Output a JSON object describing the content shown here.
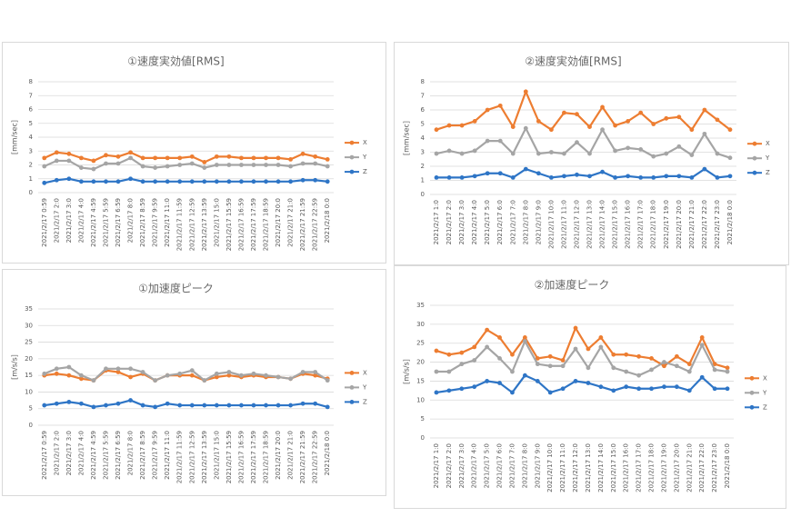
{
  "chart_data": [
    {
      "type": "line",
      "title": "①速度実効値[RMS]",
      "y_label": "[mm/sec]",
      "categories": [
        "2021/2/17 0:59",
        "2021/2/17 2:0",
        "2021/2/17 3:0",
        "2021/2/17 4:0",
        "2021/2/17 4:59",
        "2021/2/17 5:59",
        "2021/2/17 6:59",
        "2021/2/17 8:0",
        "2021/2/17 8:59",
        "2021/2/17 9:59",
        "2021/2/17 11:0",
        "2021/2/17 11:59",
        "2021/2/17 12:59",
        "2021/2/17 13:59",
        "2021/2/17 15:0",
        "2021/2/17 15:59",
        "2021/2/17 16:59",
        "2021/2/17 17:59",
        "2021/2/17 18:59",
        "2021/2/17 20:0",
        "2021/2/17 21:0",
        "2021/2/17 21:59",
        "2021/2/17 22:59",
        "2021/2/18 0:0"
      ],
      "series": [
        {
          "name": "X",
          "color": "#ed7d31",
          "values": [
            2.5,
            2.9,
            2.8,
            2.5,
            2.3,
            2.7,
            2.6,
            2.9,
            2.5,
            2.5,
            2.5,
            2.5,
            2.6,
            2.2,
            2.6,
            2.6,
            2.5,
            2.5,
            2.5,
            2.5,
            2.4,
            2.8,
            2.6,
            2.4
          ]
        },
        {
          "name": "Y",
          "color": "#a5a5a5",
          "values": [
            1.9,
            2.3,
            2.3,
            1.8,
            1.7,
            2.1,
            2.1,
            2.5,
            1.9,
            1.8,
            1.9,
            2.0,
            2.1,
            1.8,
            2.0,
            2.0,
            2.0,
            2.0,
            2.0,
            2.0,
            1.9,
            2.1,
            2.1,
            1.9
          ]
        },
        {
          "name": "Z",
          "color": "#2e75c6",
          "values": [
            0.7,
            0.9,
            1.0,
            0.8,
            0.8,
            0.8,
            0.8,
            1.0,
            0.8,
            0.8,
            0.8,
            0.8,
            0.8,
            0.8,
            0.8,
            0.8,
            0.8,
            0.8,
            0.8,
            0.8,
            0.8,
            0.9,
            0.9,
            0.8
          ]
        }
      ],
      "ylim": [
        0,
        8
      ],
      "yticks": [
        0,
        1,
        2,
        3,
        4,
        5,
        6,
        7,
        8
      ],
      "grid": true,
      "legend": "right"
    },
    {
      "type": "line",
      "title": "②速度実効値[RMS]",
      "y_label": "[mm/sec]",
      "categories": [
        "2021/2/17 1:0",
        "2021/2/17 2:0",
        "2021/2/17 3:0",
        "2021/2/17 4:0",
        "2021/2/17 5:0",
        "2021/2/17 6:0",
        "2021/2/17 7:0",
        "2021/2/17 8:0",
        "2021/2/17 9:0",
        "2021/2/17 10:0",
        "2021/2/17 11:0",
        "2021/2/17 12:0",
        "2021/2/17 13:0",
        "2021/2/17 14:0",
        "2021/2/17 15:0",
        "2021/2/17 16:0",
        "2021/2/17 17:0",
        "2021/2/17 18:0",
        "2021/2/17 19:0",
        "2021/2/17 20:0",
        "2021/2/17 21:0",
        "2021/2/17 22:0",
        "2021/2/17 23:0",
        "2021/2/18 0:0"
      ],
      "series": [
        {
          "name": "X",
          "color": "#ed7d31",
          "values": [
            4.6,
            4.9,
            4.9,
            5.2,
            6.0,
            6.3,
            4.8,
            7.3,
            5.2,
            4.6,
            5.8,
            5.7,
            4.8,
            6.2,
            4.9,
            5.2,
            5.8,
            5.0,
            5.4,
            5.5,
            4.6,
            6.0,
            5.3,
            4.6
          ]
        },
        {
          "name": "Y",
          "color": "#a5a5a5",
          "values": [
            2.9,
            3.1,
            2.9,
            3.1,
            3.8,
            3.8,
            2.9,
            4.7,
            2.9,
            3.0,
            2.9,
            3.7,
            2.9,
            4.6,
            3.1,
            3.3,
            3.2,
            2.7,
            2.9,
            3.4,
            2.8,
            4.3,
            2.9,
            2.6
          ]
        },
        {
          "name": "Z",
          "color": "#2e75c6",
          "values": [
            1.2,
            1.2,
            1.2,
            1.3,
            1.5,
            1.5,
            1.2,
            1.8,
            1.5,
            1.2,
            1.3,
            1.4,
            1.3,
            1.6,
            1.2,
            1.3,
            1.2,
            1.2,
            1.3,
            1.3,
            1.2,
            1.8,
            1.2,
            1.3
          ]
        }
      ],
      "ylim": [
        0,
        8
      ],
      "yticks": [
        0,
        1,
        2,
        3,
        4,
        5,
        6,
        7,
        8
      ],
      "grid": true,
      "legend": "right"
    },
    {
      "type": "line",
      "title": "①加速度ピーク",
      "y_label": "[m/s/s]",
      "categories": [
        "2021/2/17 0:59",
        "2021/2/17 2:0",
        "2021/2/17 3:0",
        "2021/2/17 4:0",
        "2021/2/17 4:59",
        "2021/2/17 5:59",
        "2021/2/17 6:59",
        "2021/2/17 8:0",
        "2021/2/17 8:59",
        "2021/2/17 9:59",
        "2021/2/17 11:0",
        "2021/2/17 11:59",
        "2021/2/17 12:59",
        "2021/2/17 13:59",
        "2021/2/17 15:0",
        "2021/2/17 15:59",
        "2021/2/17 16:59",
        "2021/2/17 17:59",
        "2021/2/17 18:59",
        "2021/2/17 20:0",
        "2021/2/17 21:0",
        "2021/2/17 21:59",
        "2021/2/17 22:59",
        "2021/2/18 0:0"
      ],
      "series": [
        {
          "name": "X",
          "color": "#ed7d31",
          "values": [
            15,
            15.5,
            15,
            14,
            13.5,
            16.5,
            16,
            14.5,
            15.5,
            13.5,
            15,
            15,
            15,
            13.5,
            14.5,
            15,
            14.5,
            15,
            14.5,
            14.5,
            14,
            15.5,
            15,
            14
          ]
        },
        {
          "name": "Y",
          "color": "#a5a5a5",
          "values": [
            15.5,
            17,
            17.5,
            15,
            13.5,
            17,
            17,
            17,
            16,
            13.5,
            15,
            15.5,
            16.5,
            13.5,
            15.5,
            16,
            15,
            15.5,
            15,
            14.5,
            14,
            16,
            16,
            13.5
          ]
        },
        {
          "name": "Z",
          "color": "#2e75c6",
          "values": [
            6,
            6.5,
            7,
            6.5,
            5.5,
            6,
            6.5,
            7.5,
            6,
            5.5,
            6.5,
            6,
            6,
            6,
            6,
            6,
            6,
            6,
            6,
            6,
            6,
            6.5,
            6.5,
            5.5
          ]
        }
      ],
      "ylim": [
        0,
        35
      ],
      "yticks": [
        0,
        5,
        10,
        15,
        20,
        25,
        30,
        35
      ],
      "grid": true,
      "legend": "right"
    },
    {
      "type": "line",
      "title": "②加速度ピーク",
      "y_label": "[m/s/s]",
      "categories": [
        "2021/2/17 1:0",
        "2021/2/17 2:0",
        "2021/2/17 3:0",
        "2021/2/17 4:0",
        "2021/2/17 5:0",
        "2021/2/17 6:0",
        "2021/2/17 7:0",
        "2021/2/17 8:0",
        "2021/2/17 9:0",
        "2021/2/17 10:0",
        "2021/2/17 11:0",
        "2021/2/17 12:0",
        "2021/2/17 13:0",
        "2021/2/17 14:0",
        "2021/2/17 15:0",
        "2021/2/17 16:0",
        "2021/2/17 17:0",
        "2021/2/17 18:0",
        "2021/2/17 19:0",
        "2021/2/17 20:0",
        "2021/2/17 21:0",
        "2021/2/17 22:0",
        "2021/2/17 23:0",
        "2021/2/18 0:0"
      ],
      "series": [
        {
          "name": "X",
          "color": "#ed7d31",
          "values": [
            23,
            22,
            22.5,
            24,
            28.5,
            26.5,
            22,
            26.5,
            21,
            21.5,
            20.5,
            29,
            23.5,
            26.5,
            22,
            22,
            21.5,
            21,
            19,
            21.5,
            19.5,
            26.5,
            19.5,
            18.5
          ]
        },
        {
          "name": "Y",
          "color": "#a5a5a5",
          "values": [
            17.5,
            17.5,
            19.5,
            20.5,
            24,
            21,
            17.5,
            25.5,
            19.5,
            19,
            19,
            23.5,
            18.5,
            24,
            18.5,
            17.5,
            16.5,
            18,
            20,
            19,
            17.5,
            24.5,
            18,
            17.5
          ]
        },
        {
          "name": "Z",
          "color": "#2e75c6",
          "values": [
            12,
            12.5,
            13,
            13.5,
            15,
            14.5,
            12,
            16.5,
            15,
            12,
            13,
            15,
            14.5,
            13.5,
            12.5,
            13.5,
            13,
            13,
            13.5,
            13.5,
            12.5,
            16,
            13,
            13
          ]
        }
      ],
      "ylim": [
        0,
        35
      ],
      "yticks": [
        0,
        5,
        10,
        15,
        20,
        25,
        30,
        35
      ],
      "grid": true,
      "legend": "right"
    }
  ]
}
